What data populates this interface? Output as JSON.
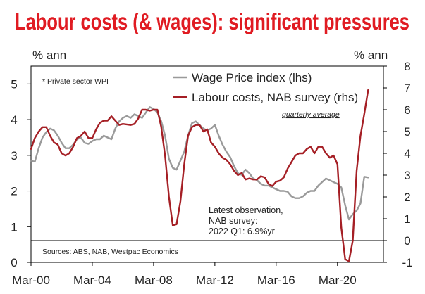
{
  "title": "Labour costs (& wages): significant pressures",
  "left_unit": "% ann",
  "right_unit": "% ann",
  "footnote": "* Private sector WPI",
  "quarterly_note": "quarterly average",
  "latest_note": [
    "Latest observation,",
    "NAB survey:",
    "2022 Q1: 6.9%yr"
  ],
  "sources": "Sources: ABS, NAB, Westpac Economics",
  "chart_data": {
    "type": "line",
    "x_tick_labels": [
      "Mar-00",
      "Mar-04",
      "Mar-08",
      "Mar-12",
      "Mar-16",
      "Mar-20"
    ],
    "x_range": [
      2000.0,
      2023.0
    ],
    "y_left": {
      "label": "% ann",
      "range": [
        0,
        5.5
      ],
      "ticks": [
        "0",
        "1",
        "2",
        "3",
        "4",
        "5"
      ]
    },
    "y_right": {
      "label": "% ann",
      "range": [
        -1,
        8
      ],
      "ticks": [
        "-1",
        "0",
        "1",
        "2",
        "3",
        "4",
        "5",
        "6",
        "7",
        "8"
      ]
    },
    "zero_line_right": 0,
    "series": [
      {
        "name": "Wage Price index (lhs)",
        "axis": "left",
        "color": "#9a9a9a",
        "points": [
          [
            2000.0,
            2.85
          ],
          [
            2000.25,
            2.82
          ],
          [
            2000.5,
            3.2
          ],
          [
            2000.75,
            3.5
          ],
          [
            2001.0,
            3.65
          ],
          [
            2001.25,
            3.75
          ],
          [
            2001.5,
            3.7
          ],
          [
            2001.75,
            3.55
          ],
          [
            2002.0,
            3.35
          ],
          [
            2002.25,
            3.2
          ],
          [
            2002.5,
            3.2
          ],
          [
            2002.75,
            3.3
          ],
          [
            2003.0,
            3.45
          ],
          [
            2003.25,
            3.5
          ],
          [
            2003.5,
            3.35
          ],
          [
            2003.75,
            3.32
          ],
          [
            2004.0,
            3.4
          ],
          [
            2004.25,
            3.45
          ],
          [
            2004.5,
            3.45
          ],
          [
            2004.75,
            3.55
          ],
          [
            2005.0,
            3.5
          ],
          [
            2005.25,
            3.45
          ],
          [
            2005.5,
            3.75
          ],
          [
            2005.75,
            3.95
          ],
          [
            2006.0,
            4.05
          ],
          [
            2006.25,
            4.1
          ],
          [
            2006.5,
            4.05
          ],
          [
            2006.75,
            4.15
          ],
          [
            2007.0,
            4.1
          ],
          [
            2007.25,
            4.05
          ],
          [
            2007.5,
            4.2
          ],
          [
            2007.75,
            4.35
          ],
          [
            2008.0,
            4.3
          ],
          [
            2008.25,
            4.2
          ],
          [
            2008.5,
            3.95
          ],
          [
            2008.75,
            3.55
          ],
          [
            2009.0,
            2.9
          ],
          [
            2009.25,
            2.65
          ],
          [
            2009.5,
            2.6
          ],
          [
            2009.75,
            2.85
          ],
          [
            2010.0,
            3.1
          ],
          [
            2010.25,
            3.55
          ],
          [
            2010.5,
            3.9
          ],
          [
            2010.75,
            3.95
          ],
          [
            2011.0,
            3.85
          ],
          [
            2011.25,
            3.75
          ],
          [
            2011.5,
            3.7
          ],
          [
            2011.75,
            3.75
          ],
          [
            2012.0,
            3.85
          ],
          [
            2012.25,
            3.55
          ],
          [
            2012.5,
            3.3
          ],
          [
            2012.75,
            3.1
          ],
          [
            2013.0,
            2.95
          ],
          [
            2013.25,
            2.7
          ],
          [
            2013.5,
            2.5
          ],
          [
            2013.75,
            2.45
          ],
          [
            2014.0,
            2.6
          ],
          [
            2014.25,
            2.5
          ],
          [
            2014.5,
            2.35
          ],
          [
            2014.75,
            2.3
          ],
          [
            2015.0,
            2.2
          ],
          [
            2015.25,
            2.15
          ],
          [
            2015.5,
            2.15
          ],
          [
            2015.75,
            2.1
          ],
          [
            2016.0,
            2.05
          ],
          [
            2016.25,
            2.0
          ],
          [
            2016.5,
            2.0
          ],
          [
            2016.75,
            1.98
          ],
          [
            2017.0,
            1.85
          ],
          [
            2017.25,
            1.8
          ],
          [
            2017.5,
            1.8
          ],
          [
            2017.75,
            1.85
          ],
          [
            2018.0,
            1.95
          ],
          [
            2018.25,
            2.0
          ],
          [
            2018.5,
            2.0
          ],
          [
            2018.75,
            2.15
          ],
          [
            2019.0,
            2.25
          ],
          [
            2019.25,
            2.35
          ],
          [
            2019.5,
            2.3
          ],
          [
            2019.75,
            2.25
          ],
          [
            2020.0,
            2.2
          ],
          [
            2020.25,
            2.1
          ],
          [
            2020.5,
            1.6
          ],
          [
            2020.75,
            1.2
          ],
          [
            2021.0,
            1.35
          ],
          [
            2021.25,
            1.45
          ],
          [
            2021.5,
            1.65
          ],
          [
            2021.75,
            2.4
          ],
          [
            2022.0,
            2.38
          ]
        ]
      },
      {
        "name": "Labour costs, NAB survey (rhs)",
        "axis": "right",
        "color": "#a51f25",
        "points": [
          [
            2000.0,
            4.2
          ],
          [
            2000.25,
            4.7
          ],
          [
            2000.5,
            5.0
          ],
          [
            2000.75,
            5.2
          ],
          [
            2001.0,
            5.2
          ],
          [
            2001.25,
            4.8
          ],
          [
            2001.5,
            4.5
          ],
          [
            2001.75,
            4.4
          ],
          [
            2002.0,
            4.0
          ],
          [
            2002.25,
            3.9
          ],
          [
            2002.5,
            4.0
          ],
          [
            2002.75,
            4.3
          ],
          [
            2003.0,
            4.7
          ],
          [
            2003.25,
            4.8
          ],
          [
            2003.5,
            5.0
          ],
          [
            2003.75,
            4.7
          ],
          [
            2004.0,
            4.7
          ],
          [
            2004.25,
            5.1
          ],
          [
            2004.5,
            5.4
          ],
          [
            2004.75,
            5.5
          ],
          [
            2005.0,
            5.5
          ],
          [
            2005.25,
            5.7
          ],
          [
            2005.75,
            5.3
          ],
          [
            2006.0,
            5.35
          ],
          [
            2006.5,
            5.3
          ],
          [
            2006.75,
            5.35
          ],
          [
            2007.0,
            5.6
          ],
          [
            2007.25,
            6.0
          ],
          [
            2007.5,
            6.0
          ],
          [
            2007.75,
            5.95
          ],
          [
            2008.0,
            6.0
          ],
          [
            2008.25,
            6.0
          ],
          [
            2008.5,
            5.2
          ],
          [
            2008.75,
            3.9
          ],
          [
            2009.0,
            2.0
          ],
          [
            2009.25,
            0.7
          ],
          [
            2009.5,
            0.75
          ],
          [
            2009.75,
            1.8
          ],
          [
            2010.0,
            3.5
          ],
          [
            2010.25,
            4.8
          ],
          [
            2010.5,
            5.2
          ],
          [
            2010.75,
            5.3
          ],
          [
            2011.0,
            5.3
          ],
          [
            2011.25,
            5.0
          ],
          [
            2011.5,
            5.1
          ],
          [
            2011.75,
            4.5
          ],
          [
            2012.0,
            4.3
          ],
          [
            2012.25,
            4.0
          ],
          [
            2012.5,
            3.8
          ],
          [
            2012.75,
            3.7
          ],
          [
            2013.0,
            3.5
          ],
          [
            2013.25,
            3.2
          ],
          [
            2013.5,
            3.0
          ],
          [
            2013.75,
            3.1
          ],
          [
            2014.0,
            2.8
          ],
          [
            2014.25,
            2.85
          ],
          [
            2014.5,
            2.8
          ],
          [
            2014.75,
            2.8
          ],
          [
            2015.0,
            2.95
          ],
          [
            2015.25,
            2.9
          ],
          [
            2015.5,
            2.6
          ],
          [
            2015.75,
            2.5
          ],
          [
            2016.0,
            2.7
          ],
          [
            2016.25,
            2.75
          ],
          [
            2016.5,
            2.9
          ],
          [
            2016.75,
            3.3
          ],
          [
            2017.0,
            3.6
          ],
          [
            2017.25,
            3.9
          ],
          [
            2017.5,
            4.0
          ],
          [
            2017.75,
            4.0
          ],
          [
            2018.0,
            4.2
          ],
          [
            2018.25,
            4.3
          ],
          [
            2018.5,
            4.0
          ],
          [
            2018.75,
            4.3
          ],
          [
            2019.0,
            4.3
          ],
          [
            2019.25,
            4.0
          ],
          [
            2019.5,
            3.8
          ],
          [
            2019.75,
            3.9
          ],
          [
            2020.0,
            3.5
          ],
          [
            2020.25,
            0.6
          ],
          [
            2020.5,
            -0.85
          ],
          [
            2020.75,
            -0.95
          ],
          [
            2021.0,
            0.0
          ],
          [
            2021.25,
            3.2
          ],
          [
            2021.5,
            4.8
          ],
          [
            2021.75,
            5.8
          ],
          [
            2022.0,
            6.9
          ]
        ]
      }
    ]
  }
}
